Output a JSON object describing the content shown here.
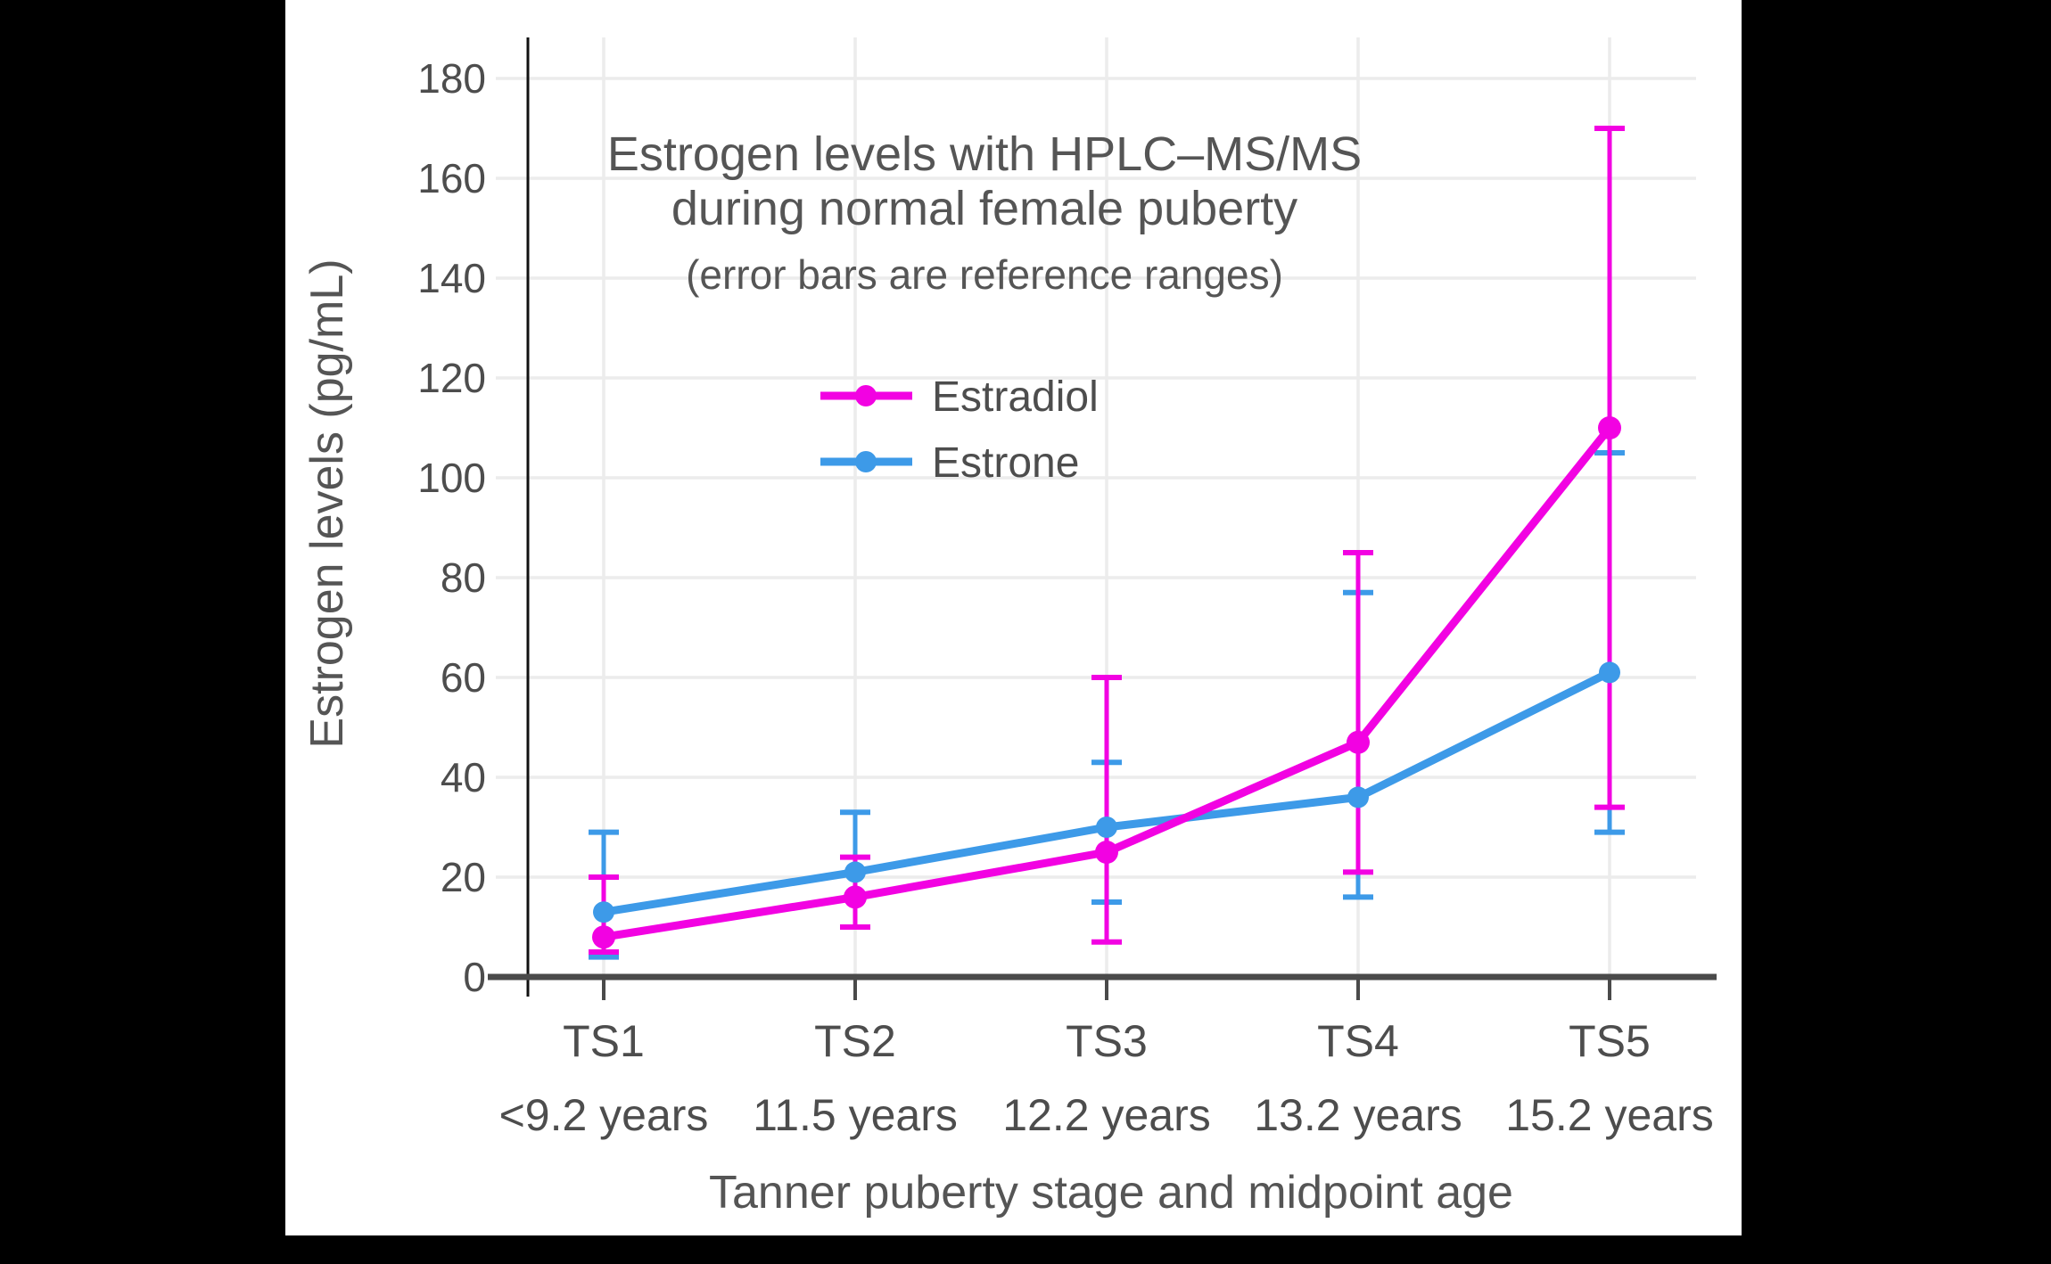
{
  "chart_data": {
    "type": "line",
    "title_lines": [
      "Estrogen levels with HPLC–MS/MS",
      "during normal female puberty"
    ],
    "subtitle": "(error bars are reference ranges)",
    "xlabel": "Tanner puberty stage and midpoint age",
    "ylabel": "Estrogen levels (pg/mL)",
    "ylim": [
      0,
      188
    ],
    "yticks": [
      0,
      20,
      40,
      60,
      80,
      100,
      120,
      140,
      160,
      180
    ],
    "grid": true,
    "legend_position": "inside, upper middle",
    "categories": [
      {
        "stage": "TS1",
        "age": "<9.2 years"
      },
      {
        "stage": "TS2",
        "age": "11.5 years"
      },
      {
        "stage": "TS3",
        "age": "12.2 years"
      },
      {
        "stage": "TS4",
        "age": "13.2 years"
      },
      {
        "stage": "TS5",
        "age": "15.2 years"
      }
    ],
    "series": [
      {
        "name": "Estrone",
        "color": "#3D9AE8",
        "values": [
          13,
          21,
          30,
          36,
          61
        ],
        "range_low": [
          4,
          10,
          15,
          16,
          29
        ],
        "range_high": [
          29,
          33,
          43,
          77,
          105
        ]
      },
      {
        "name": "Estradiol",
        "color": "#F202E2",
        "values": [
          8,
          16,
          25,
          47,
          110
        ],
        "range_low": [
          5,
          10,
          7,
          21,
          34
        ],
        "range_high": [
          20,
          24,
          60,
          85,
          170
        ]
      }
    ],
    "colors": {
      "grid": "#ECECEC",
      "x_axis": "#4A4A4A",
      "y_axis": "#111111",
      "tick_text": "#4D4D4D",
      "title_text": "#555555",
      "background": "#FFFFFF",
      "matte": "#000000"
    }
  }
}
